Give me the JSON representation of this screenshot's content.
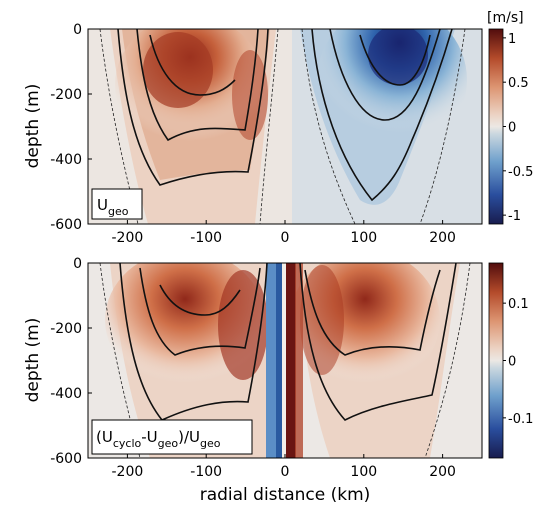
{
  "chart_data": [
    {
      "type": "heatmap",
      "panel_label": {
        "base": "U",
        "sub": "geo"
      },
      "xlabel": "",
      "ylabel": "depth (m)",
      "xlim": [
        -250,
        250
      ],
      "ylim": [
        -600,
        0
      ],
      "xticks": [
        -200,
        -100,
        0,
        100,
        200
      ],
      "yticks": [
        0,
        -200,
        -400,
        -600
      ],
      "colorbar": {
        "unit": "[m/s]",
        "range": [
          -1.1,
          1.1
        ],
        "ticks": [
          1,
          0.5,
          0,
          -0.5,
          -1
        ],
        "low_color": "#181c4e",
        "mid_color": "#f3efe9",
        "high_color": "#520d0d"
      },
      "cores": [
        {
          "x": -130,
          "depth": -80,
          "value": 1.0
        },
        {
          "x": 135,
          "depth": -60,
          "value": -1.0
        }
      ]
    },
    {
      "type": "heatmap",
      "panel_label": {
        "open": "(U",
        "sub1": "cyclo",
        "mid": "-U",
        "sub2": "geo",
        "close": ")/U",
        "sub3": "geo"
      },
      "xlabel": "radial distance (km)",
      "ylabel": "depth (m)",
      "xlim": [
        -250,
        250
      ],
      "ylim": [
        -600,
        0
      ],
      "xticks": [
        -200,
        -100,
        0,
        100,
        200
      ],
      "yticks": [
        0,
        -200,
        -400,
        -600
      ],
      "colorbar": {
        "unit": "",
        "range": [
          -0.17,
          0.17
        ],
        "ticks": [
          0.1,
          0,
          -0.1
        ],
        "low_color": "#181c4e",
        "mid_color": "#f3efe9",
        "high_color": "#520d0d"
      },
      "cores": [
        {
          "x": -130,
          "depth": -120,
          "value": 0.12
        },
        {
          "x": -45,
          "depth": -170,
          "value": 0.16
        },
        {
          "x": 100,
          "depth": -130,
          "value": 0.13
        },
        {
          "x": 10,
          "depth": -350,
          "value": 0.17
        },
        {
          "x": -12,
          "depth": -350,
          "value": -0.14
        }
      ]
    }
  ]
}
